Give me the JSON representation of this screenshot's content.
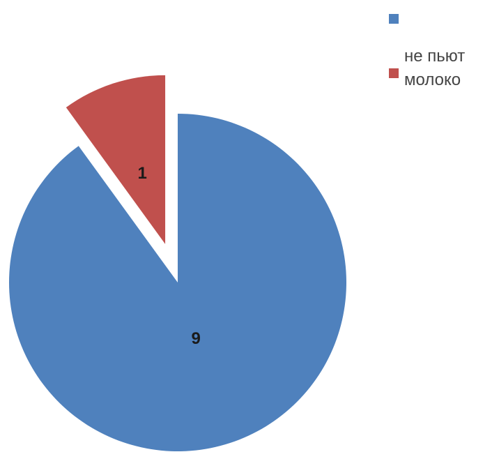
{
  "chart_data": {
    "type": "pie",
    "slices": [
      {
        "name": "",
        "value": 9,
        "label": "9",
        "color": "#4f81bd",
        "exploded": false
      },
      {
        "name": "не пьют молоко",
        "value": 1,
        "label": "1",
        "color": "#c0504d",
        "exploded": true
      }
    ],
    "legend_position": "top-right"
  }
}
